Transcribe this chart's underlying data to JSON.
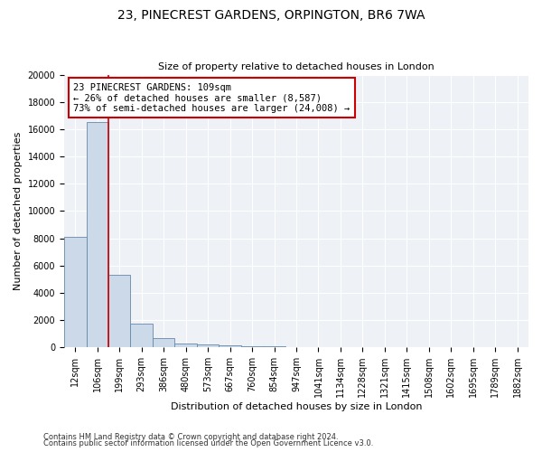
{
  "title": "23, PINECREST GARDENS, ORPINGTON, BR6 7WA",
  "subtitle": "Size of property relative to detached houses in London",
  "xlabel": "Distribution of detached houses by size in London",
  "ylabel": "Number of detached properties",
  "footer1": "Contains HM Land Registry data © Crown copyright and database right 2024.",
  "footer2": "Contains public sector information licensed under the Open Government Licence v3.0.",
  "annotation_line1": "23 PINECREST GARDENS: 109sqm",
  "annotation_line2": "← 26% of detached houses are smaller (8,587)",
  "annotation_line3": "73% of semi-detached houses are larger (24,008) →",
  "bar_color": "#ccd9e8",
  "bar_edge_color": "#6688aa",
  "red_line_color": "#cc0000",
  "annotation_box_color": "#cc0000",
  "categories": [
    "12sqm",
    "106sqm",
    "199sqm",
    "293sqm",
    "386sqm",
    "480sqm",
    "573sqm",
    "667sqm",
    "760sqm",
    "854sqm",
    "947sqm",
    "1041sqm",
    "1134sqm",
    "1228sqm",
    "1321sqm",
    "1415sqm",
    "1508sqm",
    "1602sqm",
    "1695sqm",
    "1789sqm",
    "1882sqm"
  ],
  "values": [
    8100,
    16500,
    5300,
    1750,
    700,
    300,
    200,
    150,
    100,
    50,
    0,
    0,
    0,
    0,
    0,
    0,
    0,
    0,
    0,
    0,
    0
  ],
  "ylim": [
    0,
    20000
  ],
  "yticks": [
    0,
    2000,
    4000,
    6000,
    8000,
    10000,
    12000,
    14000,
    16000,
    18000,
    20000
  ],
  "red_line_x": 1.5,
  "plot_bg_color": "#eef2f7",
  "grid_color": "#ffffff",
  "title_fontsize": 10,
  "subtitle_fontsize": 8,
  "ylabel_fontsize": 8,
  "xlabel_fontsize": 8,
  "tick_fontsize": 7,
  "footer_fontsize": 6
}
